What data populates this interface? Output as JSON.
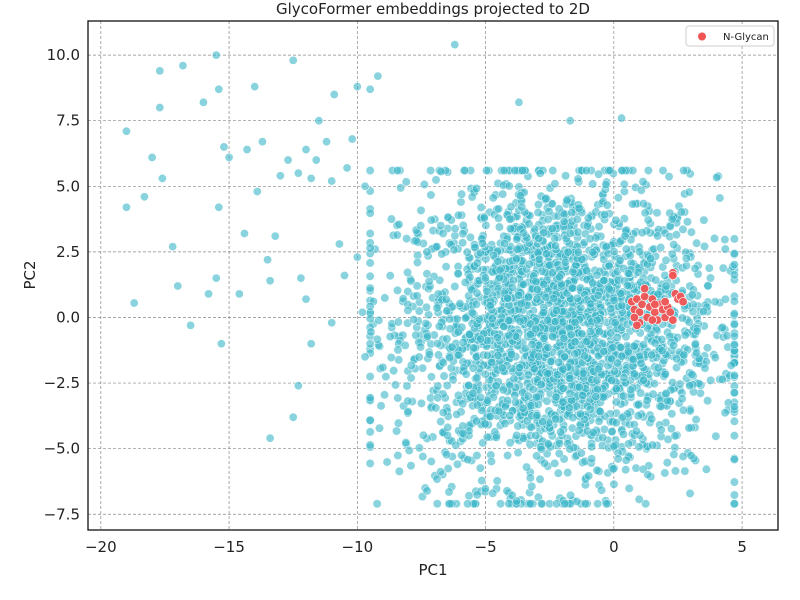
{
  "chart_data": {
    "type": "scatter",
    "title": "GlycoFormer embeddings projected to 2D",
    "xlabel": "PC1",
    "ylabel": "PC2",
    "xlim": [
      -20.5,
      6.4
    ],
    "ylim": [
      -8.1,
      11.3
    ],
    "xticks": [
      -20,
      -15,
      -10,
      -5,
      0,
      5
    ],
    "yticks": [
      -7.5,
      -5.0,
      -2.5,
      0.0,
      2.5,
      5.0,
      7.5,
      10.0
    ],
    "xtick_labels": [
      "−20",
      "−15",
      "−10",
      "−5",
      "0",
      "5"
    ],
    "ytick_labels": [
      "−7.5",
      "−5.0",
      "−2.5",
      "0.0",
      "2.5",
      "5.0",
      "7.5",
      "10.0"
    ],
    "grid": true,
    "legend_position": "top-right",
    "series": [
      {
        "name": "",
        "color": "#3bb5c8",
        "main_cloud": {
          "x_range": [
            -9.5,
            4.7
          ],
          "y_range": [
            -7.1,
            5.6
          ],
          "center": [
            -2.2,
            -0.5
          ]
        },
        "outliers": [
          [
            -19.0,
            7.1
          ],
          [
            -19.0,
            4.2
          ],
          [
            -18.7,
            0.55
          ],
          [
            -18.3,
            4.6
          ],
          [
            -18.0,
            6.1
          ],
          [
            -17.7,
            9.4
          ],
          [
            -17.7,
            8.0
          ],
          [
            -17.6,
            5.3
          ],
          [
            -17.2,
            2.7
          ],
          [
            -17.0,
            1.2
          ],
          [
            -16.8,
            9.6
          ],
          [
            -16.5,
            -0.3
          ],
          [
            -16.0,
            8.2
          ],
          [
            -15.5,
            10.0
          ],
          [
            -15.4,
            8.7
          ],
          [
            -15.2,
            6.5
          ],
          [
            -15.0,
            6.1
          ],
          [
            -15.4,
            4.2
          ],
          [
            -15.5,
            1.5
          ],
          [
            -15.8,
            0.9
          ],
          [
            -15.3,
            -1.0
          ],
          [
            -14.6,
            0.9
          ],
          [
            -14.4,
            3.2
          ],
          [
            -14.3,
            6.4
          ],
          [
            -14.0,
            8.8
          ],
          [
            -13.9,
            4.8
          ],
          [
            -13.7,
            6.7
          ],
          [
            -13.5,
            2.2
          ],
          [
            -13.4,
            1.4
          ],
          [
            -13.4,
            -4.6
          ],
          [
            -13.2,
            3.1
          ],
          [
            -13.0,
            5.4
          ],
          [
            -12.7,
            6.0
          ],
          [
            -12.5,
            9.8
          ],
          [
            -12.3,
            5.5
          ],
          [
            -12.0,
            6.4
          ],
          [
            -11.8,
            5.3
          ],
          [
            -11.6,
            6.0
          ],
          [
            -11.5,
            7.5
          ],
          [
            -11.2,
            6.7
          ],
          [
            -11.0,
            5.2
          ],
          [
            -10.9,
            8.5
          ],
          [
            -10.7,
            2.8
          ],
          [
            -10.4,
            5.7
          ],
          [
            -10.2,
            6.8
          ],
          [
            -10.0,
            8.8
          ],
          [
            -9.7,
            5.0
          ],
          [
            -9.5,
            8.7
          ],
          [
            -9.2,
            9.2
          ],
          [
            -12.3,
            -2.6
          ],
          [
            -12.5,
            -3.8
          ],
          [
            -12.0,
            0.7
          ],
          [
            -11.8,
            -1.0
          ],
          [
            -12.2,
            1.5
          ],
          [
            -11.0,
            -0.2
          ],
          [
            -10.5,
            1.6
          ],
          [
            -10.0,
            2.3
          ],
          [
            -9.8,
            0.2
          ],
          [
            -9.7,
            -1.5
          ],
          [
            -6.2,
            10.4
          ],
          [
            -3.7,
            8.2
          ],
          [
            -1.7,
            7.5
          ],
          [
            0.3,
            7.6
          ]
        ]
      },
      {
        "name": "N-Glycan",
        "color": "#f05454",
        "points": [
          [
            0.7,
            0.6
          ],
          [
            0.8,
            0.3
          ],
          [
            0.9,
            0.7
          ],
          [
            1.0,
            0.2
          ],
          [
            1.1,
            0.5
          ],
          [
            1.0,
            -0.2
          ],
          [
            1.2,
            0.8
          ],
          [
            1.3,
            0.0
          ],
          [
            1.4,
            0.4
          ],
          [
            1.5,
            0.7
          ],
          [
            1.6,
            0.2
          ],
          [
            1.7,
            -0.1
          ],
          [
            1.8,
            0.5
          ],
          [
            1.9,
            0.3
          ],
          [
            2.0,
            0.0
          ],
          [
            2.1,
            0.4
          ],
          [
            2.2,
            0.2
          ],
          [
            2.3,
            -0.1
          ],
          [
            2.3,
            1.7
          ],
          [
            2.3,
            1.6
          ],
          [
            2.4,
            0.9
          ],
          [
            2.5,
            0.7
          ],
          [
            2.6,
            0.8
          ],
          [
            2.7,
            0.6
          ],
          [
            1.2,
            1.1
          ],
          [
            0.9,
            -0.3
          ],
          [
            1.5,
            -0.1
          ],
          [
            0.8,
            0.0
          ],
          [
            2.0,
            0.6
          ],
          [
            1.6,
            0.5
          ]
        ]
      }
    ]
  }
}
